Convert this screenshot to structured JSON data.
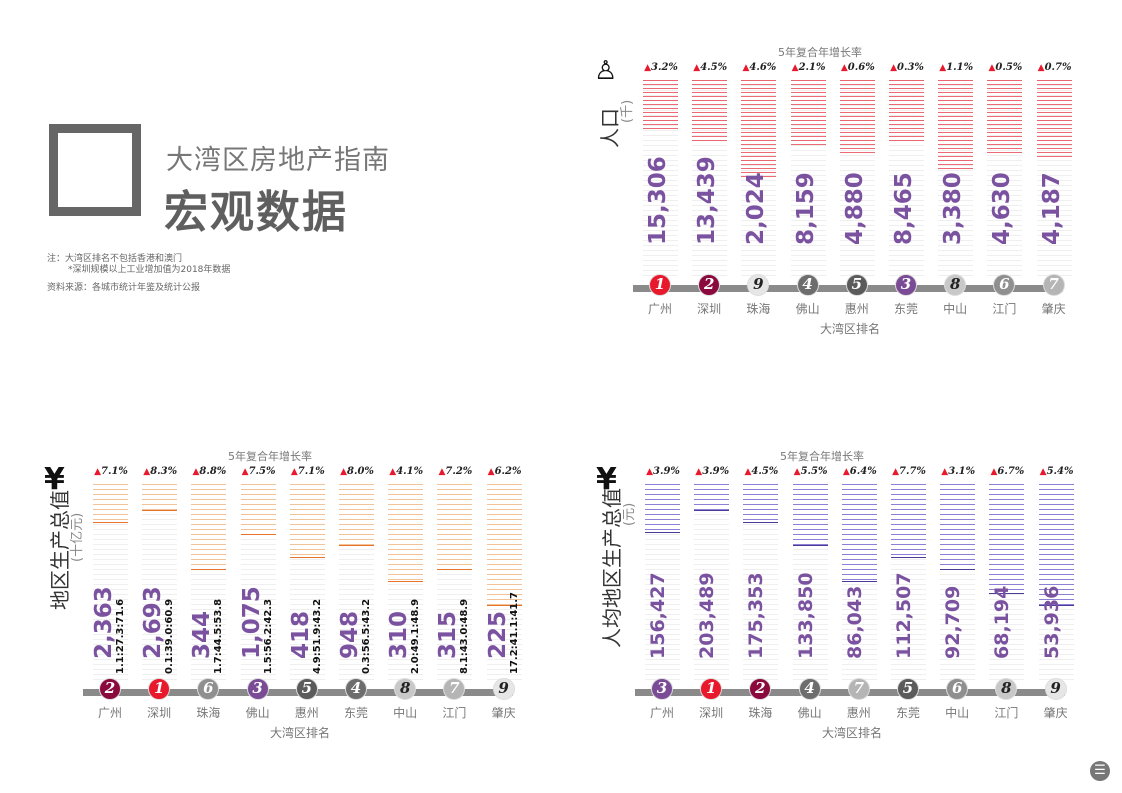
{
  "header": {
    "subtitle": "大湾区房地产指南",
    "title": "宏观数据",
    "note1": "注：大湾区排名不包括香港和澳门",
    "note2": "*深圳规模以上工业增加值为2018年数据",
    "source": "资料来源：各城市统计年鉴及统计公报"
  },
  "colors": {
    "rank_1": "#e8192c",
    "rank_2": "#8b0a3e",
    "rank_3": "#7b4c96",
    "rank_4": "#6d6d6d",
    "rank_5": "#5b5b5b",
    "rank_6": "#8f8f8f",
    "rank_7": "#b5b5b5",
    "rank_8": "#c8c8c8",
    "rank_9": "#e6e6e6",
    "value_text": "#7a52a0",
    "growth_arrow": "#e8192c"
  },
  "chart_data": [
    {
      "type": "bar",
      "title": "5年复合年增长率",
      "ylabel": "人口",
      "unit": "(千)",
      "xlabel": "大湾区排名",
      "icon": "person-icon",
      "accent": "#e63946",
      "categories": [
        "广州",
        "深圳",
        "珠海",
        "佛山",
        "惠州",
        "东莞",
        "中山",
        "江门",
        "肇庆"
      ],
      "values": [
        "15,306",
        "13,439",
        "2,024",
        "8,159",
        "4,880",
        "8,465",
        "3,380",
        "4,630",
        "4,187"
      ],
      "growth": [
        "3.2%",
        "4.5%",
        "4.6%",
        "2.1%",
        "0.6%",
        "0.3%",
        "1.1%",
        "0.5%",
        "0.7%"
      ],
      "ranks": [
        1,
        2,
        9,
        4,
        5,
        3,
        8,
        6,
        7
      ],
      "fill": [
        0.25,
        0.31,
        0.49,
        0.33,
        0.37,
        0.31,
        0.45,
        0.37,
        0.4
      ]
    },
    {
      "type": "bar",
      "title": "5年复合年增长率",
      "ylabel": "地区生产总值",
      "unit": "(十亿元)",
      "xlabel": "大湾区排名",
      "icon": "yen-icon",
      "accent": "#f4a460",
      "categories": [
        "广州",
        "深圳",
        "珠海",
        "佛山",
        "惠州",
        "东莞",
        "中山",
        "江门",
        "肇庆"
      ],
      "values": [
        "2,363",
        "2,693",
        "344",
        "1,075",
        "418",
        "948",
        "310",
        "315",
        "225"
      ],
      "structure": [
        "1.1:27.3:71.6",
        "0.1:39.0:60.9",
        "1.7:44.5:53.8",
        "1.5:56.2:42.3",
        "4.9:51.9:43.2",
        "0.3:56.5:43.2",
        "2.0:49.1:48.9",
        "8.1:43.0:48.9",
        "17.2:41.1:41.7"
      ],
      "growth": [
        "7.1%",
        "8.3%",
        "8.8%",
        "7.5%",
        "7.1%",
        "8.0%",
        "4.1%",
        "7.2%",
        "6.2%"
      ],
      "ranks": [
        2,
        1,
        6,
        3,
        5,
        4,
        8,
        7,
        9
      ],
      "fill": [
        0.19,
        0.13,
        0.43,
        0.25,
        0.37,
        0.31,
        0.49,
        0.43,
        0.61
      ]
    },
    {
      "type": "bar",
      "title": "5年复合年增长率",
      "ylabel": "人均地区生产总值",
      "unit": "(元)",
      "xlabel": "大湾区排名",
      "icon": "yen-icon",
      "accent": "#6a5acd",
      "categories": [
        "广州",
        "深圳",
        "珠海",
        "佛山",
        "惠州",
        "东莞",
        "中山",
        "江门",
        "肇庆"
      ],
      "values": [
        "156,427",
        "203,489",
        "175,353",
        "133,850",
        "86,043",
        "112,507",
        "92,709",
        "68,194",
        "53,936"
      ],
      "growth": [
        "3.9%",
        "3.9%",
        "4.5%",
        "5.5%",
        "6.4%",
        "7.7%",
        "3.1%",
        "6.7%",
        "5.4%"
      ],
      "ranks": [
        3,
        1,
        2,
        4,
        7,
        5,
        6,
        8,
        9
      ],
      "fill": [
        0.24,
        0.13,
        0.19,
        0.31,
        0.49,
        0.37,
        0.43,
        0.55,
        0.61
      ]
    }
  ]
}
